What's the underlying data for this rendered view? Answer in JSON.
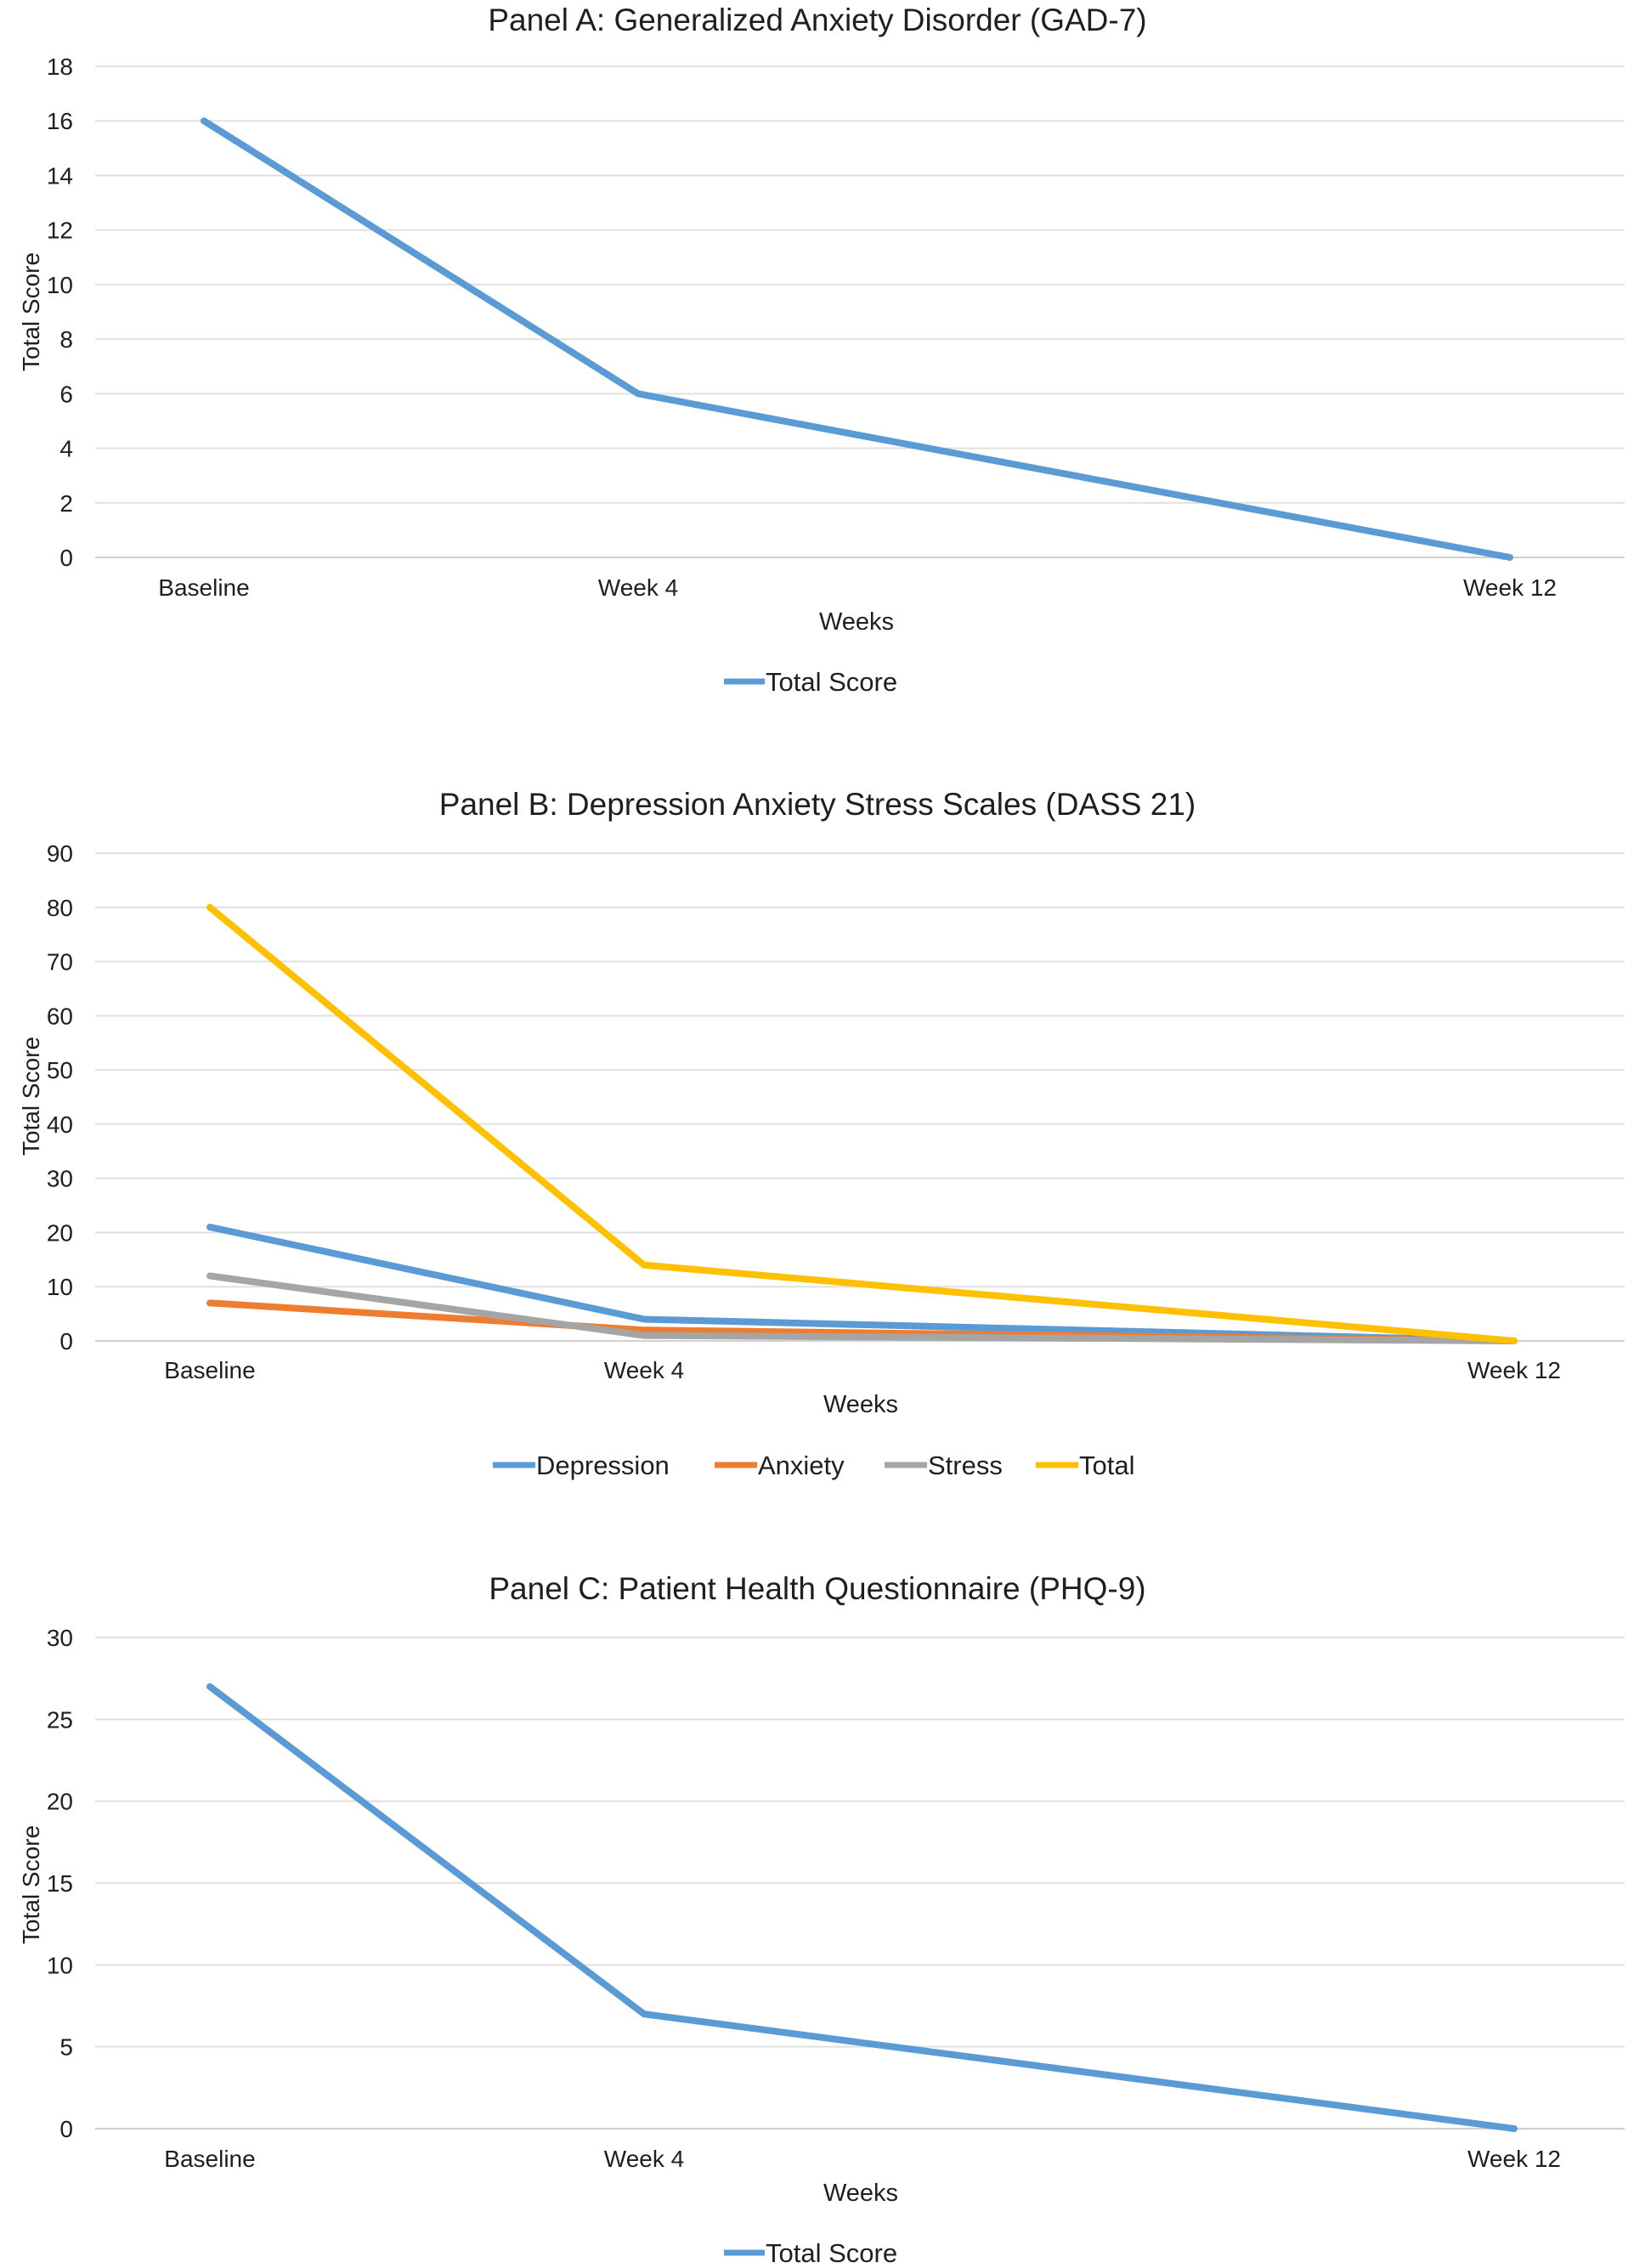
{
  "chart_data": [
    {
      "type": "line",
      "title": "Panel A: Generalized Anxiety Disorder (GAD-7)",
      "xlabel": "Weeks",
      "ylabel": "Total Score",
      "categories": [
        "Baseline",
        "Week 4",
        "Week 12"
      ],
      "x": [
        0,
        4,
        12
      ],
      "ylim": [
        0,
        18
      ],
      "yticks": [
        "0",
        "2",
        "4",
        "6",
        "8",
        "10",
        "12",
        "14",
        "16",
        "18"
      ],
      "grid": true,
      "legend": "bottom",
      "series": [
        {
          "name": "Total Score",
          "color": "#5B9BD5",
          "values": [
            16,
            6,
            0
          ]
        }
      ]
    },
    {
      "type": "line",
      "title": "Panel B: Depression Anxiety Stress Scales (DASS 21)",
      "xlabel": "Weeks",
      "ylabel": "Total Score",
      "categories": [
        "Baseline",
        "Week 4",
        "Week 12"
      ],
      "x": [
        0,
        4,
        12
      ],
      "ylim": [
        0,
        90
      ],
      "yticks": [
        "0",
        "10",
        "20",
        "30",
        "40",
        "50",
        "60",
        "70",
        "80",
        "90"
      ],
      "grid": true,
      "legend": "bottom",
      "series": [
        {
          "name": "Depression",
          "color": "#5B9BD5",
          "values": [
            21,
            4,
            0
          ]
        },
        {
          "name": "Anxiety",
          "color": "#ED7D31",
          "values": [
            7,
            2,
            0
          ]
        },
        {
          "name": "Stress",
          "color": "#A5A5A5",
          "values": [
            12,
            1,
            0
          ]
        },
        {
          "name": "Total",
          "color": "#FFC000",
          "values": [
            80,
            14,
            0
          ]
        }
      ]
    },
    {
      "type": "line",
      "title": "Panel C: Patient Health Questionnaire (PHQ-9)",
      "xlabel": "Weeks",
      "ylabel": "Total Score",
      "categories": [
        "Baseline",
        "Week 4",
        "Week 12"
      ],
      "x": [
        0,
        4,
        12
      ],
      "ylim": [
        0,
        30
      ],
      "yticks": [
        "0",
        "5",
        "10",
        "15",
        "20",
        "25",
        "30"
      ],
      "grid": true,
      "legend": "bottom",
      "series": [
        {
          "name": "Total Score",
          "color": "#5B9BD5",
          "values": [
            27,
            7,
            0
          ]
        }
      ]
    }
  ]
}
